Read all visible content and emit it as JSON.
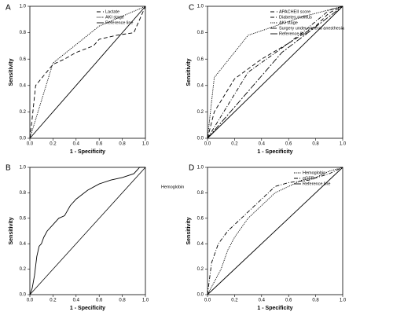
{
  "chart_data": [
    {
      "type": "line",
      "label": "A",
      "x_label": "1 - Specificity",
      "y_label": "Sensitivity",
      "xlim": [
        0,
        1
      ],
      "ylim": [
        0,
        1
      ],
      "xticks": [
        {
          "value": 0,
          "label": "0.0"
        },
        {
          "value": 0.2,
          "label": "0.2"
        },
        {
          "value": 0.4,
          "label": "0.4"
        },
        {
          "value": 0.6,
          "label": "0.6"
        },
        {
          "value": 0.8,
          "label": "0.8"
        },
        {
          "value": 1,
          "label": "1.0"
        }
      ],
      "yticks": [
        {
          "value": 0,
          "label": "0.0"
        },
        {
          "value": 0.2,
          "label": "0.2"
        },
        {
          "value": 0.4,
          "label": "0.4"
        },
        {
          "value": 0.6,
          "label": "0.6"
        },
        {
          "value": 0.8,
          "label": "0.8"
        },
        {
          "value": 1,
          "label": "1.0"
        }
      ],
      "legend": "upper right",
      "series": [
        {
          "name": "Lactate",
          "color": "#000000",
          "dash": "dashed",
          "x": [
            0,
            0.02,
            0.05,
            0.2,
            0.3,
            0.4,
            0.55,
            0.6,
            0.75,
            0.9,
            1
          ],
          "values": [
            0,
            0.15,
            0.4,
            0.56,
            0.6,
            0.65,
            0.7,
            0.75,
            0.78,
            0.8,
            1
          ]
        },
        {
          "name": "AKI stage",
          "color": "#000000",
          "dash": "dotted",
          "x": [
            0,
            0.2,
            0.6,
            1
          ],
          "values": [
            0,
            0.57,
            0.85,
            1
          ]
        },
        {
          "name": "Reference line",
          "color": "#000000",
          "dash": "solid",
          "x": [
            0,
            1
          ],
          "values": [
            0,
            1
          ]
        }
      ]
    },
    {
      "type": "line",
      "label": "C",
      "x_label": "1 - Specificity",
      "y_label": "Sensitivity",
      "xlim": [
        0,
        1
      ],
      "ylim": [
        0,
        1
      ],
      "xticks": [
        {
          "value": 0,
          "label": "0.0"
        },
        {
          "value": 0.2,
          "label": "0.2"
        },
        {
          "value": 0.4,
          "label": "0.4"
        },
        {
          "value": 0.6,
          "label": "0.6"
        },
        {
          "value": 0.8,
          "label": "0.8"
        },
        {
          "value": 1,
          "label": "1.0"
        }
      ],
      "yticks": [
        {
          "value": 0,
          "label": "0.0"
        },
        {
          "value": 0.2,
          "label": "0.2"
        },
        {
          "value": 0.4,
          "label": "0.4"
        },
        {
          "value": 0.6,
          "label": "0.6"
        },
        {
          "value": 0.8,
          "label": "0.8"
        },
        {
          "value": 1,
          "label": "1.0"
        }
      ],
      "legend": "upper right",
      "series": [
        {
          "name": "APACHEII score",
          "color": "#000000",
          "dash": "dashed",
          "x": [
            0,
            0.05,
            0.2,
            0.4,
            0.6,
            0.8,
            0.9,
            1
          ],
          "values": [
            0,
            0.2,
            0.45,
            0.6,
            0.72,
            0.85,
            0.95,
            1
          ]
        },
        {
          "name": "Diabetes mellitus",
          "color": "#000000",
          "dash": "dashdot",
          "x": [
            0,
            0.3,
            0.6,
            0.7,
            0.9,
            1
          ],
          "values": [
            0,
            0.5,
            0.72,
            0.8,
            0.97,
            1
          ]
        },
        {
          "name": "AKI stage",
          "color": "#000000",
          "dash": "dotted",
          "x": [
            0,
            0.05,
            0.3,
            0.7,
            1
          ],
          "values": [
            0,
            0.46,
            0.78,
            0.92,
            1
          ]
        },
        {
          "name": "Surgery under general anesthesia",
          "color": "#000000",
          "dash": "longdash",
          "x": [
            0,
            0.55,
            1
          ],
          "values": [
            0,
            0.65,
            1
          ]
        },
        {
          "name": "Reference line",
          "color": "#000000",
          "dash": "solid",
          "x": [
            0,
            1
          ],
          "values": [
            0,
            1
          ]
        }
      ]
    },
    {
      "type": "line",
      "label": "B",
      "x_label": "1 - Specificity",
      "y_label": "Sensitivity",
      "xlim": [
        0,
        1
      ],
      "ylim": [
        0,
        1
      ],
      "xticks": [
        {
          "value": 0,
          "label": "0.0"
        },
        {
          "value": 0.2,
          "label": "0.2"
        },
        {
          "value": 0.4,
          "label": "0.4"
        },
        {
          "value": 0.6,
          "label": "0.6"
        },
        {
          "value": 0.8,
          "label": "0.8"
        },
        {
          "value": 1,
          "label": "1.0"
        }
      ],
      "yticks": [
        {
          "value": 0,
          "label": "0.0"
        },
        {
          "value": 0.2,
          "label": "0.2"
        },
        {
          "value": 0.4,
          "label": "0.4"
        },
        {
          "value": 0.6,
          "label": "0.6"
        },
        {
          "value": 0.8,
          "label": "0.8"
        },
        {
          "value": 1,
          "label": "1.0"
        }
      ],
      "legend": "outside right",
      "reference_line": true,
      "series": [
        {
          "name": "Hemoglobin",
          "color": "#000000",
          "dash": "solid",
          "x": [
            0,
            0.02,
            0.04,
            0.06,
            0.08,
            0.1,
            0.12,
            0.15,
            0.2,
            0.25,
            0.3,
            0.35,
            0.4,
            0.5,
            0.6,
            0.7,
            0.8,
            0.9,
            0.95,
            1
          ],
          "values": [
            0,
            0.05,
            0.15,
            0.3,
            0.38,
            0.4,
            0.45,
            0.5,
            0.55,
            0.6,
            0.62,
            0.7,
            0.75,
            0.82,
            0.87,
            0.9,
            0.92,
            0.95,
            1,
            1
          ]
        }
      ]
    },
    {
      "type": "line",
      "label": "D",
      "x_label": "1 - Specificity",
      "y_label": "Sensitivity",
      "xlim": [
        0,
        1
      ],
      "ylim": [
        0,
        1
      ],
      "xticks": [
        {
          "value": 0,
          "label": "0.0"
        },
        {
          "value": 0.2,
          "label": "0.2"
        },
        {
          "value": 0.4,
          "label": "0.4"
        },
        {
          "value": 0.6,
          "label": "0.6"
        },
        {
          "value": 0.8,
          "label": "0.8"
        },
        {
          "value": 1,
          "label": "1.0"
        }
      ],
      "yticks": [
        {
          "value": 0,
          "label": "0.0"
        },
        {
          "value": 0.2,
          "label": "0.2"
        },
        {
          "value": 0.4,
          "label": "0.4"
        },
        {
          "value": 0.6,
          "label": "0.6"
        },
        {
          "value": 0.8,
          "label": "0.8"
        },
        {
          "value": 1,
          "label": "1.0"
        }
      ],
      "legend": "upper right",
      "series": [
        {
          "name": "Hemoglobin",
          "color": "#000000",
          "dash": "dotted",
          "x": [
            0,
            0.05,
            0.1,
            0.15,
            0.2,
            0.3,
            0.4,
            0.5,
            0.6,
            0.7,
            0.8,
            0.9,
            1
          ],
          "values": [
            0,
            0.1,
            0.2,
            0.35,
            0.45,
            0.6,
            0.7,
            0.8,
            0.85,
            0.9,
            0.92,
            0.97,
            1
          ]
        },
        {
          "name": "eGFR",
          "color": "#000000",
          "dash": "dashdot",
          "x": [
            0,
            0.03,
            0.08,
            0.15,
            0.25,
            0.35,
            0.45,
            0.5,
            0.6,
            0.75,
            0.9,
            1
          ],
          "values": [
            0,
            0.25,
            0.4,
            0.5,
            0.6,
            0.7,
            0.8,
            0.85,
            0.88,
            0.9,
            0.95,
            1
          ]
        },
        {
          "name": "Reference line",
          "color": "#000000",
          "dash": "solid",
          "x": [
            0,
            1
          ],
          "values": [
            0,
            1
          ]
        }
      ]
    }
  ]
}
